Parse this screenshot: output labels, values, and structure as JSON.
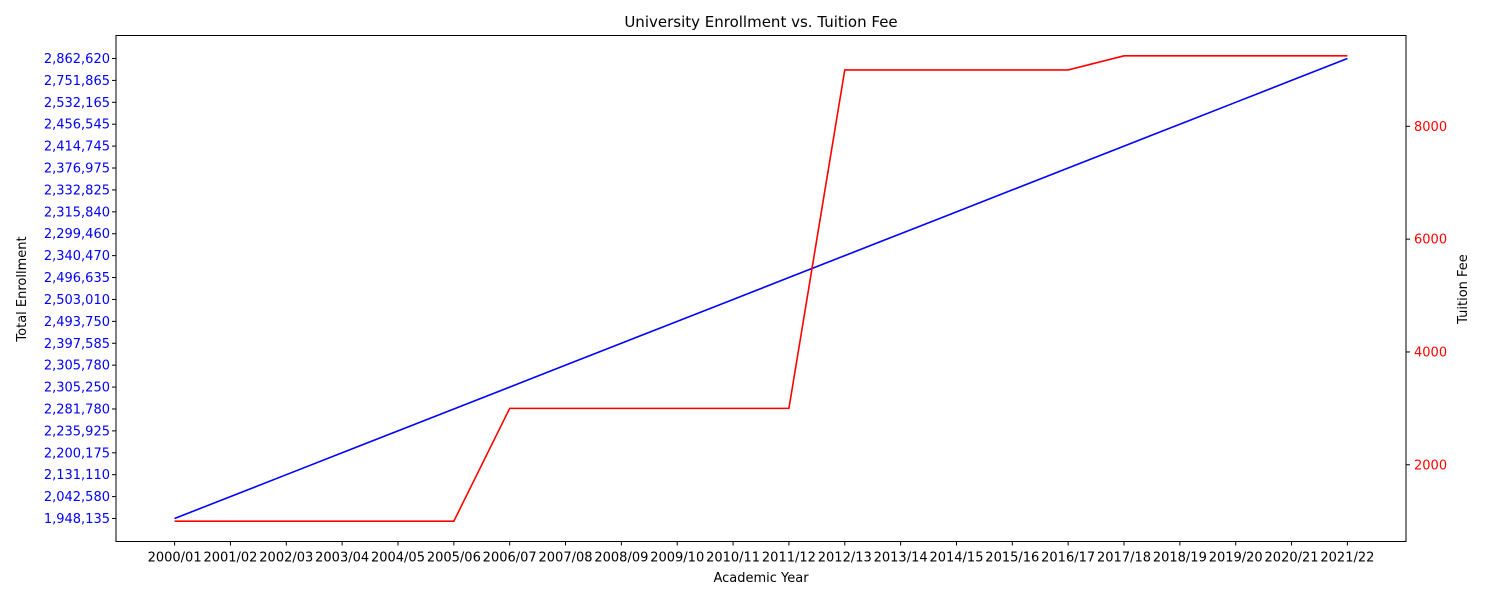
{
  "chart_data": {
    "type": "line",
    "title": "University Enrollment vs. Tuition Fee",
    "xlabel": "Academic Year",
    "ylabel_left": "Total Enrollment",
    "ylabel_right": "Tuition Fee",
    "grid": false,
    "categories": [
      "2000/01",
      "2001/02",
      "2002/03",
      "2003/04",
      "2004/05",
      "2005/06",
      "2006/07",
      "2007/08",
      "2008/09",
      "2009/10",
      "2010/11",
      "2011/12",
      "2012/13",
      "2013/14",
      "2014/15",
      "2015/16",
      "2016/17",
      "2017/18",
      "2018/19",
      "2019/20",
      "2020/21",
      "2021/22"
    ],
    "series": [
      {
        "axis": "left",
        "color": "#0000ff",
        "values": [
          "1,948,135",
          "2,042,580",
          "2,131,110",
          "2,200,175",
          "2,235,925",
          "2,281,780",
          "2,305,250",
          "2,305,780",
          "2,397,585",
          "2,493,750",
          "2,503,010",
          "2,496,635",
          "2,340,470",
          "2,299,460",
          "2,315,840",
          "2,332,825",
          "2,376,975",
          "2,414,745",
          "2,456,545",
          "2,532,165",
          "2,751,865",
          "2,862,620"
        ]
      },
      {
        "axis": "right",
        "color": "#ff0000",
        "values": [
          1000,
          1000,
          1000,
          1000,
          1000,
          1000,
          3000,
          3000,
          3000,
          3000,
          3000,
          3000,
          9000,
          9000,
          9000,
          9000,
          9000,
          9250,
          9250,
          9250,
          9250,
          9250
        ]
      }
    ],
    "right_axis": {
      "ylim": [
        640,
        9610
      ],
      "ticks": [
        2000,
        4000,
        6000,
        8000
      ]
    }
  }
}
